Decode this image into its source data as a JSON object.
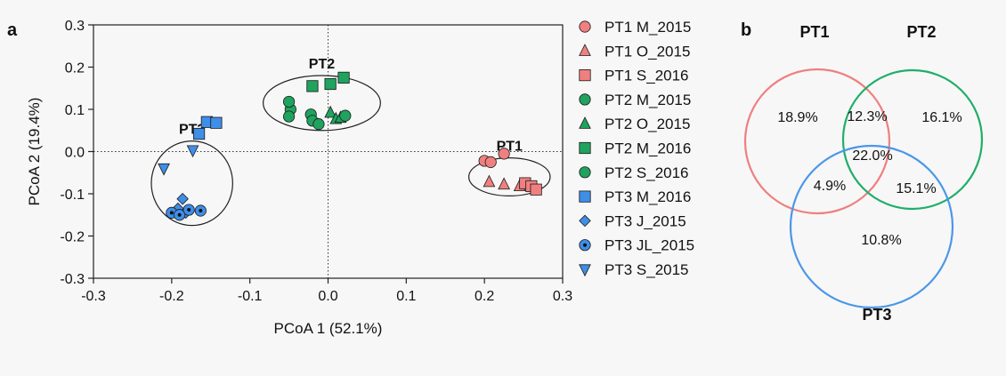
{
  "panels": {
    "a": "a",
    "b": "b"
  },
  "chart_data": [
    {
      "type": "scatter",
      "xlabel": "PCoA 1 (52.1%)",
      "ylabel": "PCoA 2 (19.4%)",
      "xlim": [
        -0.3,
        0.3
      ],
      "ylim": [
        -0.3,
        0.3
      ],
      "xticks": [
        "-0.3",
        "-0.2",
        "-0.1",
        "0.0",
        "0.1",
        "0.2",
        "0.3"
      ],
      "yticks": [
        "-0.3",
        "-0.2",
        "-0.1",
        "0.0",
        "0.1",
        "0.2",
        "0.3"
      ],
      "reference_lines": [
        "x=0 dotted",
        "y=0 dotted"
      ],
      "colors": {
        "PT1": "#f08080",
        "PT2": "#1fa35f",
        "PT3": "#3f8ee8"
      },
      "groups": [
        {
          "label": "PT1",
          "center": [
            0.232,
            -0.06
          ],
          "radius": [
            0.052,
            0.045
          ]
        },
        {
          "label": "PT2",
          "center": [
            -0.008,
            0.115
          ],
          "radius": [
            0.075,
            0.065
          ]
        },
        {
          "label": "PT3",
          "center": [
            -0.174,
            -0.075
          ],
          "radius": [
            0.052,
            0.1
          ]
        }
      ],
      "series": [
        {
          "name": "PT1 M_2015",
          "group": "PT1",
          "marker": "circle",
          "points": [
            [
              0.2,
              -0.022
            ],
            [
              0.208,
              -0.025
            ],
            [
              0.225,
              -0.005
            ]
          ]
        },
        {
          "name": "PT1 O_2015",
          "group": "PT1",
          "marker": "triangle",
          "points": [
            [
              0.206,
              -0.072
            ],
            [
              0.225,
              -0.078
            ],
            [
              0.245,
              -0.082
            ]
          ]
        },
        {
          "name": "PT1 S_2016",
          "group": "PT1",
          "marker": "square",
          "points": [
            [
              0.252,
              -0.075
            ],
            [
              0.26,
              -0.082
            ],
            [
              0.266,
              -0.09
            ]
          ]
        },
        {
          "name": "PT2 M_2015",
          "group": "PT2",
          "marker": "circle",
          "points": [
            [
              -0.048,
              0.1
            ],
            [
              -0.05,
              0.083
            ],
            [
              -0.022,
              0.088
            ]
          ]
        },
        {
          "name": "PT2 O_2015",
          "group": "PT2",
          "marker": "triangle",
          "points": [
            [
              0.003,
              0.092
            ],
            [
              0.01,
              0.077
            ],
            [
              0.016,
              0.08
            ]
          ]
        },
        {
          "name": "PT2 M_2016",
          "group": "PT2",
          "marker": "square",
          "points": [
            [
              -0.02,
              0.155
            ],
            [
              0.003,
              0.16
            ],
            [
              0.02,
              0.175
            ]
          ]
        },
        {
          "name": "PT2 S_2016",
          "group": "PT2",
          "marker": "circle",
          "points": [
            [
              -0.05,
              0.118
            ],
            [
              -0.02,
              0.073
            ],
            [
              -0.012,
              0.065
            ],
            [
              0.022,
              0.085
            ]
          ]
        },
        {
          "name": "PT3 M_2016",
          "group": "PT3",
          "marker": "square",
          "points": [
            [
              -0.165,
              0.042
            ],
            [
              -0.155,
              0.07
            ],
            [
              -0.143,
              0.068
            ]
          ]
        },
        {
          "name": "PT3 J_2015",
          "group": "PT3",
          "marker": "diamond",
          "points": [
            [
              -0.186,
              -0.112
            ],
            [
              -0.192,
              -0.135
            ],
            [
              -0.182,
              -0.145
            ]
          ]
        },
        {
          "name": "PT3 JL_2015",
          "group": "PT3",
          "marker": "dotcircle",
          "points": [
            [
              -0.2,
              -0.145
            ],
            [
              -0.19,
              -0.15
            ],
            [
              -0.178,
              -0.138
            ],
            [
              -0.163,
              -0.14
            ]
          ]
        },
        {
          "name": "PT3 S_2015",
          "group": "PT3",
          "marker": "tridown",
          "points": [
            [
              -0.21,
              -0.04
            ],
            [
              -0.173,
              0.003
            ]
          ]
        }
      ]
    },
    {
      "type": "venn",
      "sets": [
        "PT1",
        "PT2",
        "PT3"
      ],
      "colors": {
        "PT1": "#ef7f7f",
        "PT2": "#1fae6a",
        "PT3": "#4b97e8"
      },
      "regions": [
        {
          "sets": [
            "PT1"
          ],
          "value": "18.9%"
        },
        {
          "sets": [
            "PT2"
          ],
          "value": "16.1%"
        },
        {
          "sets": [
            "PT3"
          ],
          "value": "10.8%"
        },
        {
          "sets": [
            "PT1",
            "PT2"
          ],
          "value": "12.3%"
        },
        {
          "sets": [
            "PT1",
            "PT3"
          ],
          "value": "4.9%"
        },
        {
          "sets": [
            "PT2",
            "PT3"
          ],
          "value": "15.1%"
        },
        {
          "sets": [
            "PT1",
            "PT2",
            "PT3"
          ],
          "value": "22.0%"
        }
      ]
    }
  ]
}
